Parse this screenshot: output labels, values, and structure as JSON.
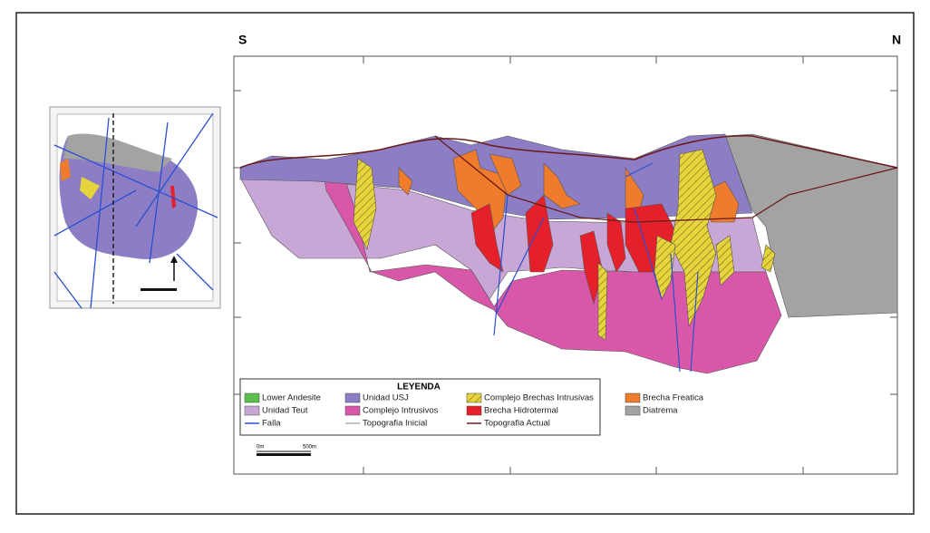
{
  "section": {
    "left_label": "S",
    "right_label": "N"
  },
  "legend": {
    "title": "LEYENDA",
    "areas": [
      {
        "label": "Lower Andesite",
        "color": "#5cbf4b"
      },
      {
        "label": "Unidad USJ",
        "color": "#8c7dc4"
      },
      {
        "label": "Complejo Brechas Intrusivas",
        "color": "#e6d43f"
      },
      {
        "label": "Brecha Freatica",
        "color": "#ef7b2c"
      },
      {
        "label": "Unidad Teut",
        "color": "#c8a6d6"
      },
      {
        "label": "Complejo Intrusivos",
        "color": "#d957a8"
      },
      {
        "label": "Brecha Hidrotermal",
        "color": "#e5202a"
      },
      {
        "label": "Diatrema",
        "color": "#a3a3a3"
      }
    ],
    "lines": [
      {
        "label": "Falla",
        "color": "#2a4fd0"
      },
      {
        "label": "Topografia Inicial",
        "color": "#b0b0b0"
      },
      {
        "label": "Topografia Actual",
        "color": "#6b1a1a"
      }
    ]
  },
  "scale": {
    "start": "0m",
    "end": "500m"
  }
}
